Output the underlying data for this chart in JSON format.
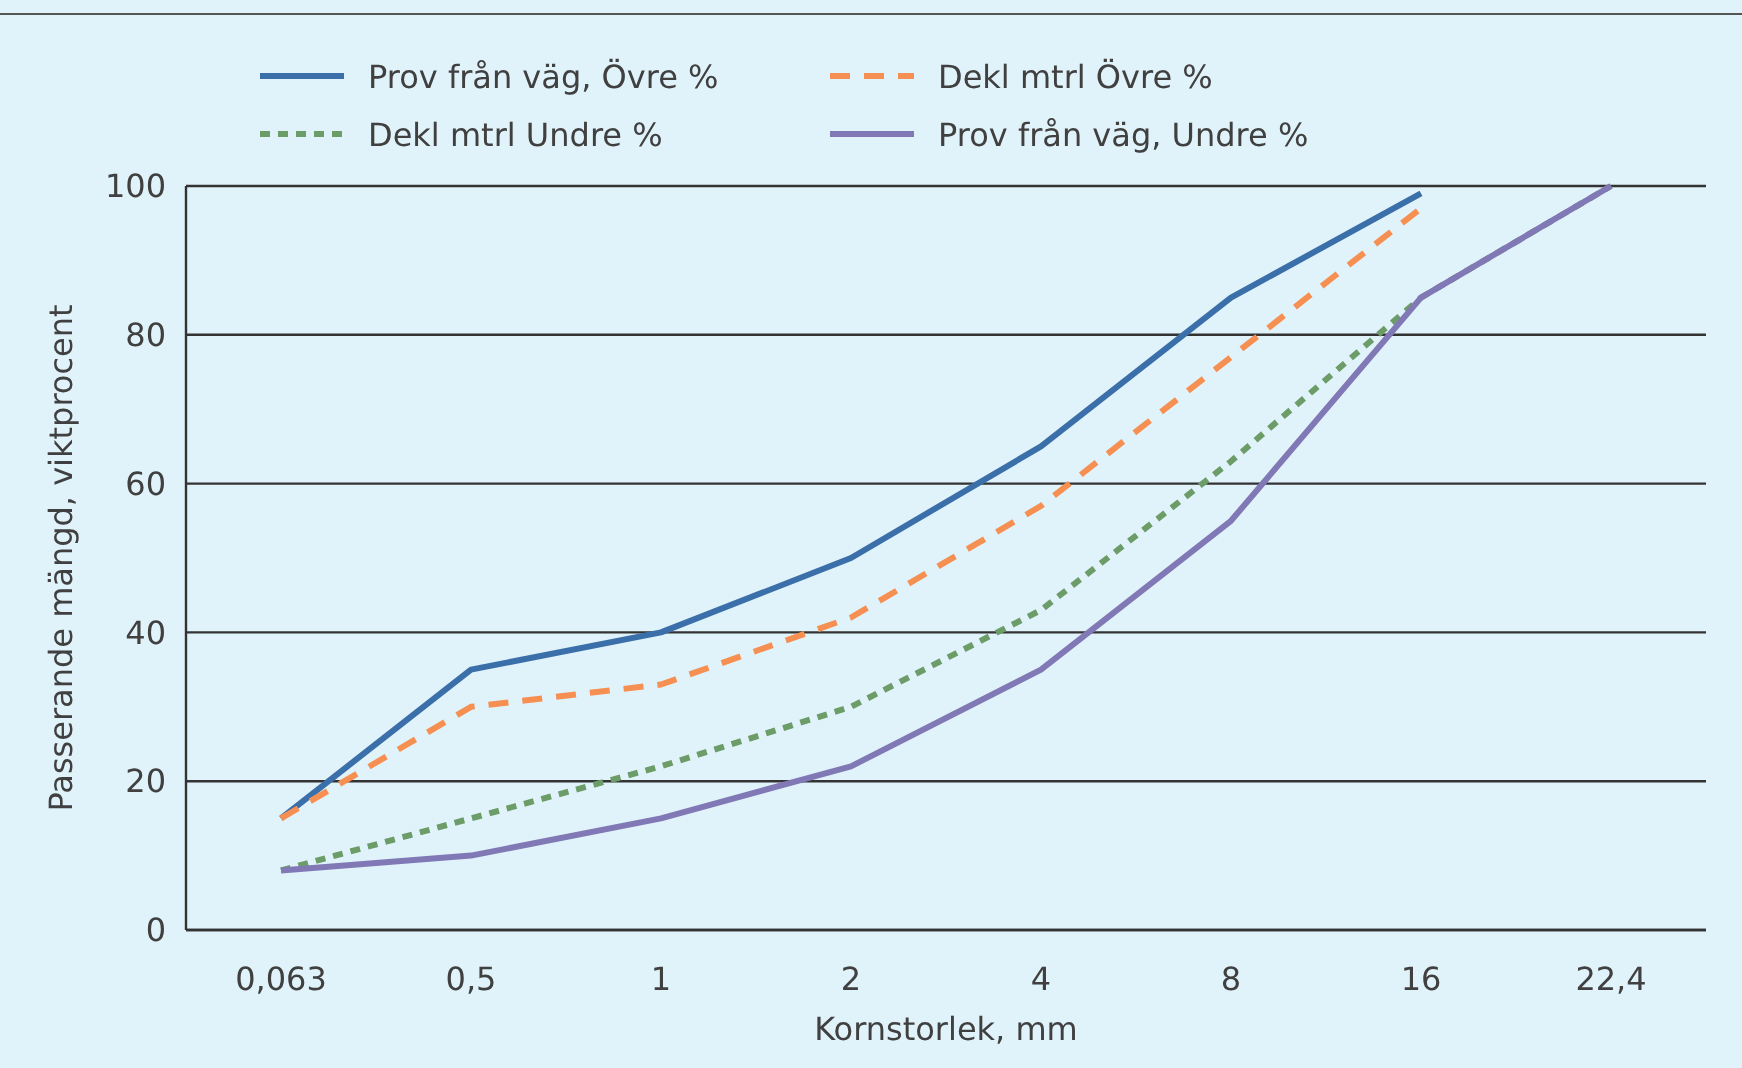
{
  "chart_data": {
    "type": "line",
    "xlabel": "Kornstorlek, mm",
    "ylabel": "Passerande mängd, viktprocent",
    "categories": [
      "0,063",
      "0,5",
      "1",
      "2",
      "4",
      "8",
      "16",
      "22,4"
    ],
    "ylim": [
      0,
      100
    ],
    "yticks": [
      0,
      20,
      40,
      60,
      80,
      100
    ],
    "grid": "y",
    "legend": "top",
    "marker": "none",
    "series": [
      {
        "name": "Prov från väg, Övre %",
        "color": "#3b6fa9",
        "line_style": "solid",
        "values": [
          15,
          35,
          40,
          50,
          65,
          85,
          99,
          null
        ]
      },
      {
        "name": "Dekl mtrl Övre %",
        "color": "#f68f52",
        "line_style": "dashed",
        "values": [
          15,
          30,
          33,
          42,
          57,
          77,
          97,
          null
        ]
      },
      {
        "name": "Dekl mtrl Undre %",
        "color": "#6c9c67",
        "line_style": "dotted",
        "values": [
          8,
          15,
          22,
          30,
          43,
          63,
          85,
          100
        ]
      },
      {
        "name": "Prov från väg, Undre %",
        "color": "#8178b6",
        "line_style": "solid",
        "values": [
          8,
          10,
          15,
          22,
          35,
          55,
          85,
          100
        ]
      }
    ]
  }
}
